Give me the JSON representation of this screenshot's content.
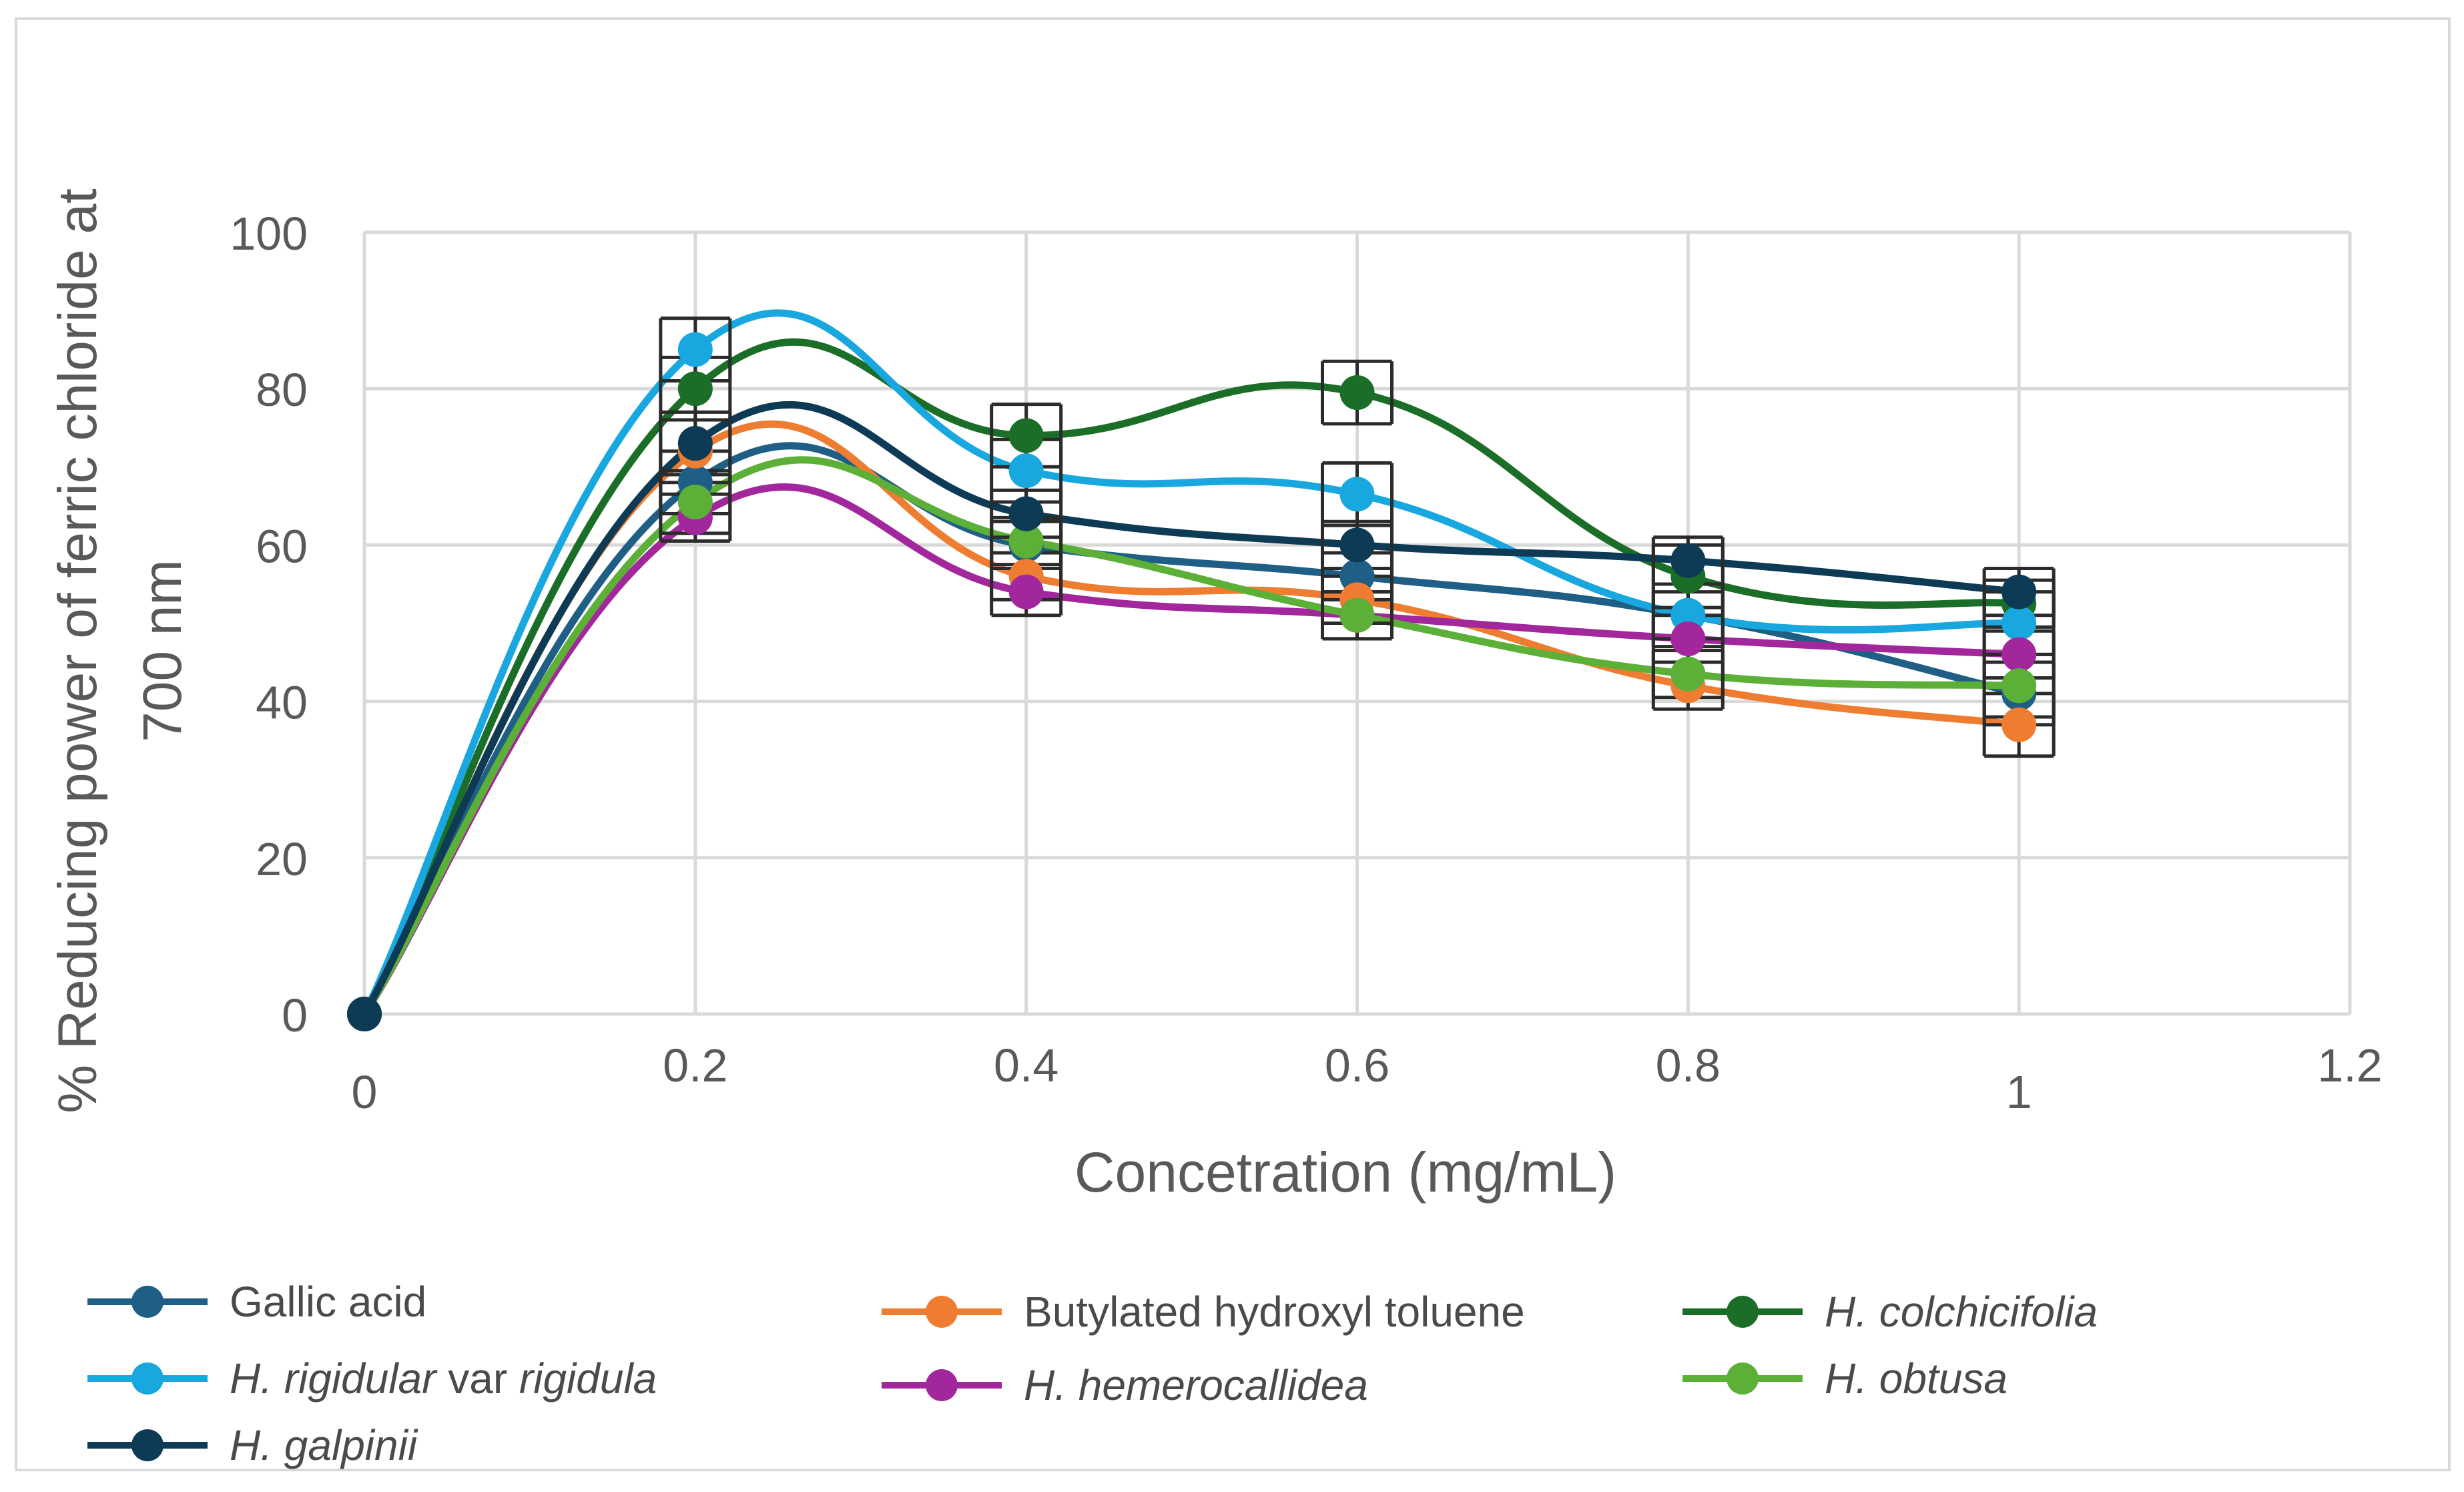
{
  "chart_data": {
    "type": "line",
    "title": "",
    "xlabel": "Concetration (mg/mL)",
    "ylabel_line1": "% Reducing power of ferric chloride at",
    "ylabel_line2": "700 nm",
    "xlim": [
      0,
      1.2
    ],
    "ylim": [
      0,
      100
    ],
    "x_ticks": [
      "0",
      "0.2",
      "0.4",
      "0.6",
      "0.8",
      "1",
      "1.2"
    ],
    "y_ticks": [
      "0",
      "20",
      "40",
      "60",
      "80",
      "100"
    ],
    "grid": true,
    "smooth": true,
    "x": [
      0,
      0.2,
      0.4,
      0.6,
      0.8,
      1.0
    ],
    "series": [
      {
        "name": "Gallic acid",
        "italic": false,
        "color": "#1f5f85",
        "values": [
          0,
          68,
          60,
          56,
          51,
          41
        ],
        "errors": [
          0,
          4,
          3,
          3,
          3,
          4
        ]
      },
      {
        "name": "Butylated hydroxyl toluene",
        "italic": false,
        "color": "#ee7d31",
        "values": [
          0,
          72,
          56,
          53,
          42,
          37
        ],
        "errors": [
          0,
          4,
          3,
          3,
          3,
          4
        ]
      },
      {
        "name": "H. colchicifolia",
        "italic": true,
        "color": "#1b6e27",
        "values": [
          0,
          80,
          74,
          79.5,
          56,
          52.5
        ],
        "errors": [
          0,
          4,
          4,
          4,
          4,
          3
        ]
      },
      {
        "name": "H. rigidular var rigidula",
        "italic": "partial",
        "name_parts": [
          "H. rigidular",
          " var ",
          "rigidula"
        ],
        "color": "#19a7df",
        "values": [
          0,
          85,
          69.5,
          66.5,
          51,
          50
        ],
        "errors": [
          0,
          4,
          4,
          4,
          4,
          4
        ]
      },
      {
        "name": "H. hemerocallidea",
        "italic": true,
        "color": "#a3279c",
        "values": [
          0,
          63.5,
          54,
          51,
          48,
          46
        ],
        "errors": [
          0,
          3,
          3,
          3,
          3,
          3
        ]
      },
      {
        "name": "H. obtusa",
        "italic": true,
        "color": "#5cb038",
        "values": [
          0,
          65.5,
          60.5,
          51,
          43.5,
          42
        ],
        "errors": [
          0,
          4,
          3,
          3,
          3,
          4
        ]
      },
      {
        "name": "H. galpinii",
        "italic": true,
        "color": "#0d3a55",
        "values": [
          0,
          73,
          64,
          60,
          58,
          54
        ],
        "errors": [
          0,
          4,
          3,
          3,
          3,
          3
        ]
      }
    ]
  },
  "legend": {
    "gallic": "Gallic acid",
    "bht": "Butylated hydroxyl toluene",
    "colchicifolia": "H. colchicifolia",
    "rigidular_a": "H. rigidular",
    "rigidular_b": " var ",
    "rigidular_c": "rigidula",
    "hemerocallidea": "H. hemerocallidea",
    "obtusa": "H. obtusa",
    "galpinii": "H. galpinii"
  },
  "colors": {
    "grid": "#d9d9d9",
    "axis_text": "#595959",
    "title_text": "#404040"
  }
}
